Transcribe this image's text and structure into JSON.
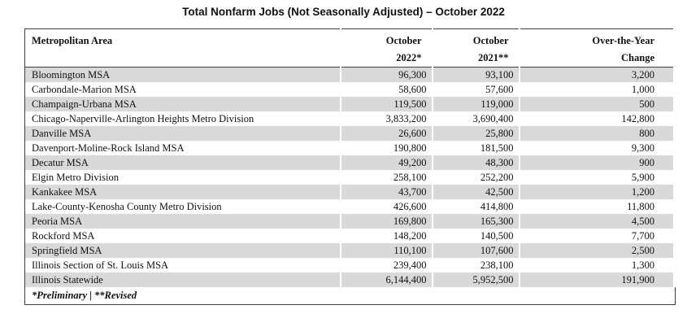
{
  "title": "Total Nonfarm Jobs (Not Seasonally Adjusted) – October 2022",
  "colors": {
    "row_shade": "#d9d9d9",
    "table_border": "#3f3f3f",
    "text": "#111111"
  },
  "table": {
    "columns": [
      {
        "line1": "Metropolitan Area",
        "line2": ""
      },
      {
        "line1": "October",
        "line2": "2022*"
      },
      {
        "line1": "October",
        "line2": "2021**"
      },
      {
        "line1": "Over-the-Year",
        "line2": "Change"
      }
    ],
    "rows": [
      {
        "area": "Bloomington MSA",
        "oct_2022": "96,300",
        "oct_2021": "93,100",
        "change": "3,200"
      },
      {
        "area": "Carbondale-Marion MSA",
        "oct_2022": "58,600",
        "oct_2021": "57,600",
        "change": "1,000"
      },
      {
        "area": "Champaign-Urbana MSA",
        "oct_2022": "119,500",
        "oct_2021": "119,000",
        "change": "500"
      },
      {
        "area": "Chicago-Naperville-Arlington Heights Metro Division",
        "oct_2022": "3,833,200",
        "oct_2021": "3,690,400",
        "change": "142,800"
      },
      {
        "area": "Danville MSA",
        "oct_2022": "26,600",
        "oct_2021": "25,800",
        "change": "800"
      },
      {
        "area": "Davenport-Moline-Rock Island MSA",
        "oct_2022": "190,800",
        "oct_2021": "181,500",
        "change": "9,300"
      },
      {
        "area": "Decatur MSA",
        "oct_2022": "49,200",
        "oct_2021": "48,300",
        "change": "900"
      },
      {
        "area": "Elgin Metro Division",
        "oct_2022": "258,100",
        "oct_2021": "252,200",
        "change": "5,900"
      },
      {
        "area": "Kankakee MSA",
        "oct_2022": "43,700",
        "oct_2021": "42,500",
        "change": "1,200"
      },
      {
        "area": "Lake-County-Kenosha County Metro Division",
        "oct_2022": "426,600",
        "oct_2021": "414,800",
        "change": "11,800"
      },
      {
        "area": "Peoria MSA",
        "oct_2022": "169,800",
        "oct_2021": "165,300",
        "change": "4,500"
      },
      {
        "area": "Rockford MSA",
        "oct_2022": "148,200",
        "oct_2021": "140,500",
        "change": "7,700"
      },
      {
        "area": "Springfield MSA",
        "oct_2022": "110,100",
        "oct_2021": "107,600",
        "change": "2,500"
      },
      {
        "area": "Illinois Section of St. Louis MSA",
        "oct_2022": "239,400",
        "oct_2021": "238,100",
        "change": "1,300"
      },
      {
        "area": "Illinois Statewide",
        "oct_2022": "6,144,400",
        "oct_2021": "5,952,500",
        "change": "191,900"
      }
    ],
    "footnote": "*Preliminary | **Revised"
  }
}
